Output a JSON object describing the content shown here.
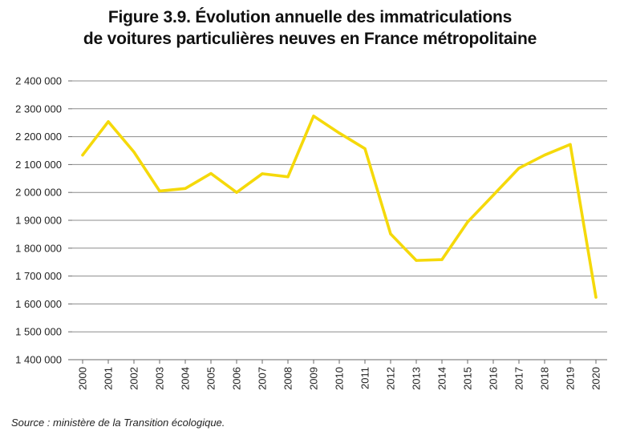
{
  "chart_data": {
    "type": "line",
    "title_lines": [
      "Figure 3.9. Évolution annuelle des immatriculations",
      "de voitures particulières neuves en France métropolitaine"
    ],
    "xlabel": "",
    "ylabel": "",
    "categories": [
      "2000",
      "2001",
      "2002",
      "2003",
      "2004",
      "2005",
      "2006",
      "2007",
      "2008",
      "2009",
      "2010",
      "2011",
      "2012",
      "2013",
      "2014",
      "2015",
      "2016",
      "2017",
      "2018",
      "2019",
      "2020"
    ],
    "series": [
      {
        "values": [
          2134000,
          2254000,
          2145000,
          2005000,
          2014000,
          2068000,
          2000000,
          2067000,
          2056000,
          2274000,
          2213000,
          2157000,
          1851000,
          1756000,
          1759000,
          1894000,
          1990000,
          2087000,
          2134000,
          2172000,
          1624000
        ],
        "color": "#f5d90a"
      }
    ],
    "ylim": [
      1400000,
      2400000
    ],
    "yticks": [
      1400000,
      1500000,
      1600000,
      1700000,
      1800000,
      1900000,
      2000000,
      2100000,
      2200000,
      2300000,
      2400000
    ],
    "ytick_labels": [
      "1 400 000",
      "1 500 000",
      "1 600 000",
      "1 700 000",
      "1 800 000",
      "1 900 000",
      "2 000 000",
      "2 100 000",
      "2 200 000",
      "2 300 000",
      "2 400 000"
    ],
    "grid": true,
    "source": "Source : ministère de la Transition écologique."
  }
}
